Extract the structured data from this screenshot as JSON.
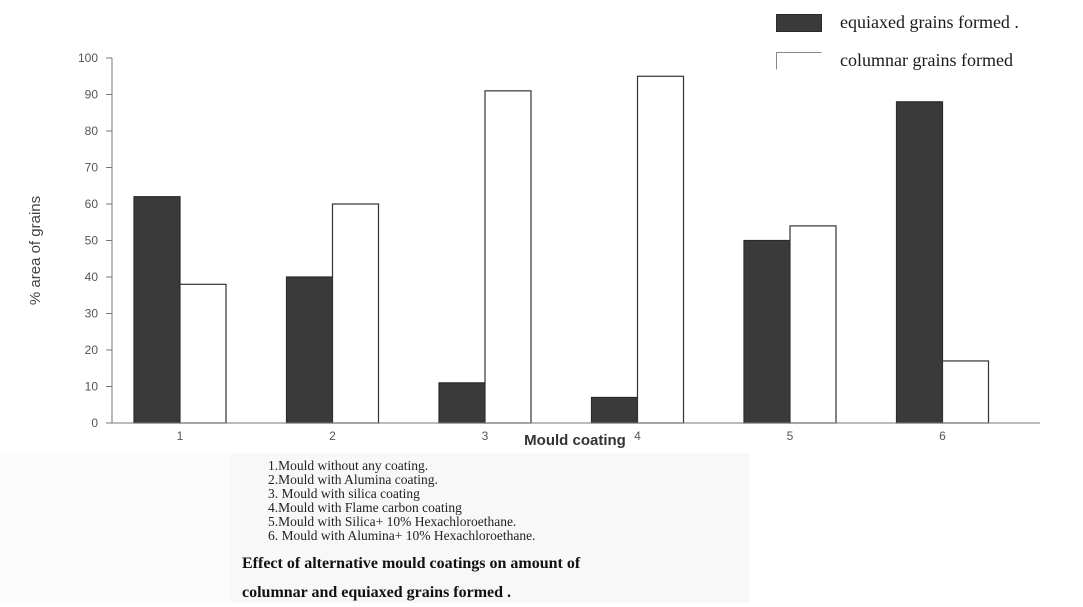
{
  "chart_data": {
    "type": "bar",
    "title": "",
    "xlabel": "Mould coating",
    "ylabel": "% area of grains",
    "ylim": [
      0,
      100
    ],
    "yticks": [
      0,
      10,
      20,
      30,
      40,
      50,
      60,
      70,
      80,
      90,
      100
    ],
    "categories": [
      "1",
      "2",
      "3",
      "4",
      "5",
      "6"
    ],
    "series": [
      {
        "name": "equiaxed grains formed .",
        "values": [
          62,
          40,
          11,
          7,
          50,
          88
        ]
      },
      {
        "name": "columnar grains formed",
        "values": [
          38,
          60,
          91,
          95,
          54,
          17
        ]
      }
    ],
    "legend_position": "top-right",
    "grid": false,
    "colors": {
      "equiaxed": "#3a3a3a",
      "columnar": "#ffffff",
      "axis": "#777777",
      "tick_text": "#555555"
    }
  },
  "notes": [
    "1.Mould without any coating.",
    "2.Mould with Alumina coating.",
    "3. Mould with silica coating",
    "4.Mould with Flame carbon coating",
    "5.Mould with Silica+ 10% Hexachloroethane.",
    "6. Mould with Alumina+ 10% Hexachloroethane."
  ],
  "caption_lines": [
    "Effect of alternative mould coatings on amount of",
    "columnar  and equiaxed grains formed ."
  ]
}
